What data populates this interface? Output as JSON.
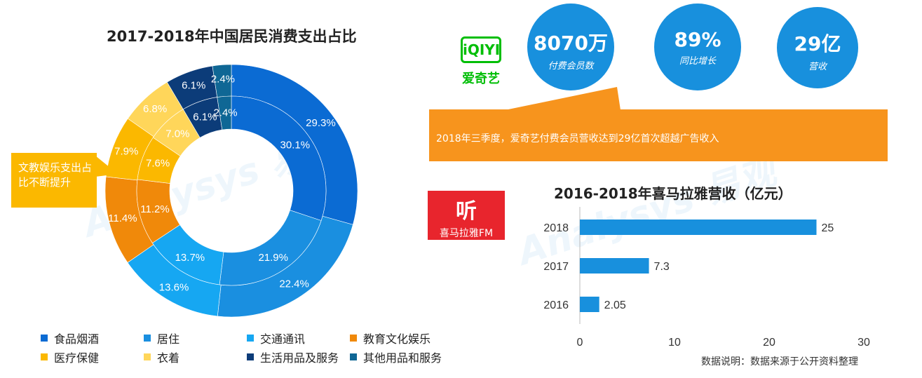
{
  "donut": {
    "title": "2017-2018年中国居民消费支出占比",
    "callout": "文教娱乐支出占比不断提升",
    "chart_data": {
      "type": "pie",
      "series": [
        {
          "values": [
            29.3,
            22.4,
            13.6,
            11.4,
            7.9,
            6.8,
            6.1,
            2.4
          ]
        },
        {
          "values": [
            30.1,
            21.9,
            13.7,
            11.2,
            7.6,
            7.0,
            6.1,
            2.4
          ]
        }
      ],
      "categories": [
        "食品烟酒",
        "居住",
        "交通通讯",
        "教育文化娱乐",
        "医疗保健",
        "衣着",
        "生活用品及服务",
        "其他用品和服务"
      ],
      "colors": [
        "#0b6bd3",
        "#1a8fe0",
        "#16a7f2",
        "#f0890a",
        "#fbb800",
        "#ffd65a",
        "#0c3c79",
        "#0f6795"
      ],
      "labels_outer": [
        "29.3%",
        "22.4%",
        "13.6%",
        "11.4%",
        "7.9%",
        "6.8%",
        "6.1%",
        "2.4%"
      ],
      "labels_inner": [
        "30.1%",
        "21.9%",
        "13.7%",
        "11.2%",
        "7.6%",
        "7.0%",
        "6.1%",
        "2.4%"
      ]
    }
  },
  "iqiyi": {
    "logo_text": "爱奇艺",
    "logo_mark": "iQIYI",
    "stats": [
      {
        "value": "8070万",
        "label": "付费会员数"
      },
      {
        "value": "89%",
        "label": "同比增长"
      },
      {
        "value": "29亿",
        "label": "营收"
      }
    ],
    "banner": "2018年三季度，爱奇艺付费会员营收达到29亿首次超越广告收入",
    "accent": "#f7941d"
  },
  "bars": {
    "title": "2016-2018年喜马拉雅营收（亿元）",
    "logo_char": "听",
    "logo_text": "喜马拉雅FM",
    "chart_data": {
      "type": "bar",
      "orientation": "horizontal",
      "categories": [
        "2018",
        "2017",
        "2016"
      ],
      "values": [
        25,
        7.3,
        2.05
      ],
      "value_labels": [
        "25",
        "7.3",
        "2.05"
      ],
      "xlim": [
        0,
        30
      ],
      "xticks": [
        "0",
        "10",
        "20",
        "30"
      ],
      "color": "#1890dd",
      "grid": false
    }
  },
  "note": "数据说明：数据来源于公开资料整理",
  "watermark": "Analysys 易观"
}
